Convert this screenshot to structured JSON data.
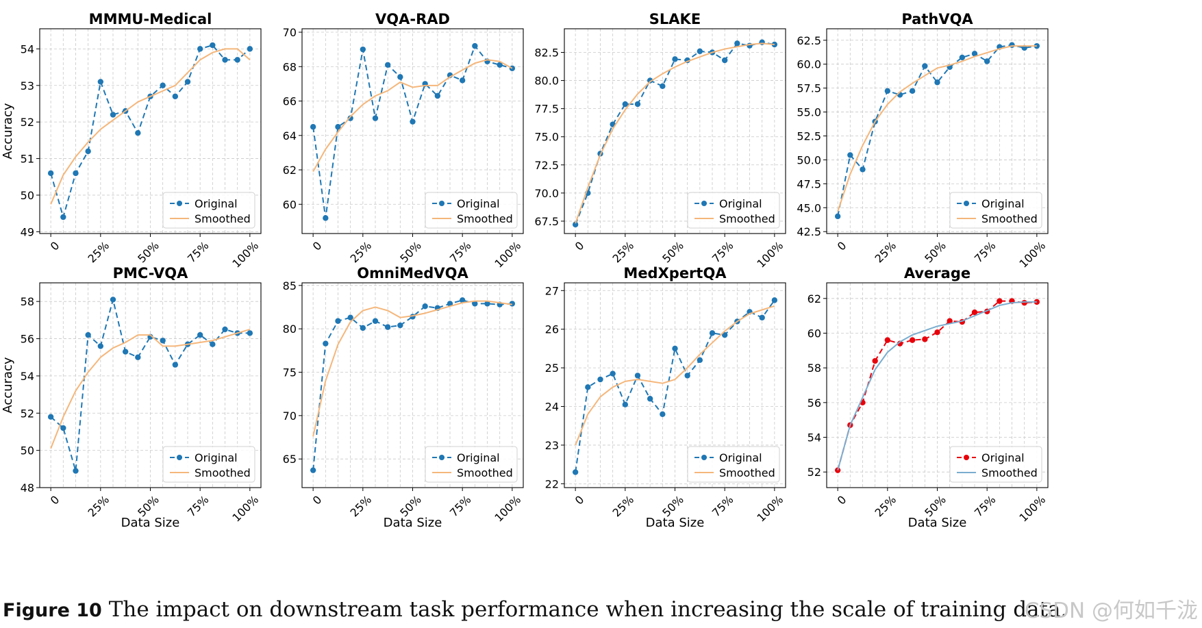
{
  "figure": {
    "caption_label": "Figure 10",
    "caption_text": "The impact on downstream task performance when increasing the scale of training data.",
    "watermark": "CSDN @何如千泷"
  },
  "colors": {
    "original_blue": "#1f77b4",
    "smoothed_orange": "#f5b67a",
    "original_red": "#e8000b",
    "smoothed_blue": "#7aadcf",
    "grid": "#c8c8c8"
  },
  "chart_data": [
    {
      "type": "line",
      "title": "MMMU-Medical",
      "ylabel": "Accuracy",
      "xlabel": "",
      "x_ticks": [
        "0",
        "25%",
        "50%",
        "75%",
        "100%"
      ],
      "ylim": [
        48.95,
        54.55
      ],
      "y_ticks": [
        49,
        50,
        51,
        52,
        53,
        54
      ],
      "grid": true,
      "legend": "lower right",
      "series": [
        {
          "name": "Original",
          "style": "dashed-markers",
          "color": "#1f77b4",
          "values": [
            50.6,
            49.4,
            50.6,
            51.2,
            53.1,
            52.2,
            52.3,
            51.7,
            52.7,
            53.0,
            52.7,
            53.1,
            54.0,
            54.1,
            53.7,
            53.7,
            54.0
          ]
        },
        {
          "name": "Smoothed",
          "style": "solid",
          "color": "#f5b67a",
          "values": [
            49.75,
            50.55,
            51.05,
            51.45,
            51.8,
            52.05,
            52.3,
            52.55,
            52.7,
            52.85,
            53.0,
            53.35,
            53.7,
            53.9,
            54.0,
            54.0,
            53.7
          ]
        }
      ]
    },
    {
      "type": "line",
      "title": "VQA-RAD",
      "ylabel": "",
      "xlabel": "",
      "x_ticks": [
        "0",
        "25%",
        "50%",
        "75%",
        "100%"
      ],
      "ylim": [
        58.3,
        70.2
      ],
      "y_ticks": [
        60,
        62,
        64,
        66,
        68,
        70
      ],
      "grid": true,
      "legend": "lower right",
      "series": [
        {
          "name": "Original",
          "style": "dashed-markers",
          "color": "#1f77b4",
          "values": [
            64.5,
            59.2,
            64.5,
            65.0,
            69.0,
            65.0,
            68.1,
            67.4,
            64.8,
            67.0,
            66.3,
            67.5,
            67.2,
            69.2,
            68.3,
            68.1,
            67.9
          ]
        },
        {
          "name": "Smoothed",
          "style": "solid",
          "color": "#f5b67a",
          "values": [
            61.9,
            63.2,
            64.2,
            65.1,
            65.8,
            66.3,
            66.6,
            67.1,
            66.8,
            66.9,
            66.9,
            67.4,
            67.8,
            68.2,
            68.4,
            68.3,
            67.9
          ]
        }
      ]
    },
    {
      "type": "line",
      "title": "SLAKE",
      "ylabel": "",
      "xlabel": "",
      "x_ticks": [
        "0",
        "25%",
        "50%",
        "75%",
        "100%"
      ],
      "ylim": [
        66.4,
        84.6
      ],
      "y_ticks": [
        67.5,
        70.0,
        72.5,
        75.0,
        77.5,
        80.0,
        82.5
      ],
      "grid": true,
      "legend": "lower right",
      "series": [
        {
          "name": "Original",
          "style": "dashed-markers",
          "color": "#1f77b4",
          "values": [
            67.2,
            70.0,
            73.5,
            76.1,
            77.9,
            77.9,
            80.0,
            79.5,
            81.9,
            81.8,
            82.6,
            82.5,
            81.8,
            83.3,
            83.1,
            83.4,
            83.2
          ]
        },
        {
          "name": "Smoothed",
          "style": "solid",
          "color": "#f5b67a",
          "values": [
            67.3,
            70.5,
            73.4,
            75.7,
            77.4,
            78.8,
            79.9,
            80.6,
            81.2,
            81.7,
            82.1,
            82.5,
            82.8,
            83.0,
            83.2,
            83.3,
            83.2
          ]
        }
      ]
    },
    {
      "type": "line",
      "title": "PathVQA",
      "ylabel": "",
      "xlabel": "",
      "x_ticks": [
        "0",
        "25%",
        "50%",
        "75%",
        "100%"
      ],
      "ylim": [
        42.3,
        63.7
      ],
      "y_ticks": [
        42.5,
        45.0,
        47.5,
        50.0,
        52.5,
        55.0,
        57.5,
        60.0,
        62.5
      ],
      "grid": true,
      "legend": "lower right",
      "series": [
        {
          "name": "Original",
          "style": "dashed-markers",
          "color": "#1f77b4",
          "values": [
            44.1,
            50.5,
            49.0,
            54.0,
            57.2,
            56.8,
            57.2,
            59.8,
            58.1,
            59.7,
            60.7,
            61.1,
            60.3,
            61.8,
            62.0,
            61.7,
            61.9
          ]
        },
        {
          "name": "Smoothed",
          "style": "solid",
          "color": "#f5b67a",
          "values": [
            44.6,
            48.5,
            51.5,
            54.0,
            55.8,
            57.1,
            58.0,
            58.8,
            59.6,
            59.9,
            60.3,
            60.8,
            61.2,
            61.6,
            61.9,
            61.9,
            61.9
          ]
        }
      ]
    },
    {
      "type": "line",
      "title": "PMC-VQA",
      "ylabel": "Accuracy",
      "xlabel": "Data Size",
      "x_ticks": [
        "0",
        "25%",
        "50%",
        "75%",
        "100%"
      ],
      "ylim": [
        48.0,
        59.0
      ],
      "y_ticks": [
        48,
        50,
        52,
        54,
        56,
        58
      ],
      "grid": true,
      "legend": "lower right",
      "series": [
        {
          "name": "Original",
          "style": "dashed-markers",
          "color": "#1f77b4",
          "values": [
            51.8,
            51.2,
            48.9,
            56.2,
            55.6,
            58.1,
            55.3,
            55.0,
            56.1,
            55.9,
            54.6,
            55.7,
            56.2,
            55.7,
            56.5,
            56.3,
            56.3
          ]
        },
        {
          "name": "Smoothed",
          "style": "solid",
          "color": "#f5b67a",
          "values": [
            50.1,
            51.8,
            53.2,
            54.2,
            55.0,
            55.5,
            55.8,
            56.2,
            56.2,
            55.6,
            55.6,
            55.7,
            55.8,
            55.9,
            56.1,
            56.3,
            56.5
          ]
        }
      ]
    },
    {
      "type": "line",
      "title": "OmniMedVQA",
      "ylabel": "",
      "xlabel": "Data Size",
      "x_ticks": [
        "0",
        "25%",
        "50%",
        "75%",
        "100%"
      ],
      "ylim": [
        61.7,
        85.3
      ],
      "y_ticks": [
        65,
        70,
        75,
        80,
        85
      ],
      "grid": true,
      "legend": "lower right",
      "series": [
        {
          "name": "Original",
          "style": "dashed-markers",
          "color": "#1f77b4",
          "values": [
            63.7,
            78.3,
            80.9,
            81.3,
            80.1,
            80.9,
            80.2,
            80.4,
            81.4,
            82.6,
            82.4,
            82.9,
            83.3,
            82.9,
            82.9,
            82.8,
            82.9
          ]
        },
        {
          "name": "Smoothed",
          "style": "solid",
          "color": "#f5b67a",
          "values": [
            67.6,
            74.0,
            78.2,
            80.8,
            82.1,
            82.5,
            82.1,
            81.3,
            81.5,
            81.8,
            82.2,
            82.6,
            83.0,
            83.2,
            83.2,
            83.0,
            82.8
          ]
        }
      ]
    },
    {
      "type": "line",
      "title": "MedXpertQA",
      "ylabel": "",
      "xlabel": "Data Size",
      "x_ticks": [
        "0",
        "25%",
        "50%",
        "75%",
        "100%"
      ],
      "ylim": [
        21.9,
        27.2
      ],
      "y_ticks": [
        22,
        23,
        24,
        25,
        26,
        27
      ],
      "grid": true,
      "legend": "lower right",
      "series": [
        {
          "name": "Original",
          "style": "dashed-markers",
          "color": "#1f77b4",
          "values": [
            22.3,
            24.5,
            24.7,
            24.85,
            24.05,
            24.8,
            24.2,
            23.8,
            25.5,
            24.8,
            25.2,
            25.9,
            25.85,
            26.2,
            26.45,
            26.3,
            26.75
          ]
        },
        {
          "name": "Smoothed",
          "style": "solid",
          "color": "#f5b67a",
          "values": [
            23.0,
            23.8,
            24.25,
            24.5,
            24.65,
            24.7,
            24.65,
            24.6,
            24.7,
            25.0,
            25.35,
            25.65,
            25.95,
            26.2,
            26.4,
            26.5,
            26.6
          ]
        }
      ]
    },
    {
      "type": "line",
      "title": "Average",
      "ylabel": "",
      "xlabel": "Data Size",
      "x_ticks": [
        "0",
        "25%",
        "50%",
        "75%",
        "100%"
      ],
      "ylim": [
        51.1,
        62.9
      ],
      "y_ticks": [
        52,
        54,
        56,
        58,
        60,
        62
      ],
      "grid": true,
      "legend": "lower right",
      "series": [
        {
          "name": "Original",
          "style": "dashed-markers",
          "color": "#e8000b",
          "values": [
            52.1,
            54.7,
            56.0,
            58.4,
            59.6,
            59.4,
            59.6,
            59.65,
            60.05,
            60.7,
            60.65,
            61.2,
            61.25,
            61.85,
            61.85,
            61.75,
            61.8
          ]
        },
        {
          "name": "Smoothed",
          "style": "solid",
          "color": "#7aadcf",
          "values": [
            52.1,
            54.7,
            56.3,
            57.9,
            58.9,
            59.5,
            59.9,
            60.15,
            60.4,
            60.55,
            60.7,
            61.0,
            61.3,
            61.6,
            61.75,
            61.8,
            61.8
          ]
        }
      ]
    }
  ]
}
